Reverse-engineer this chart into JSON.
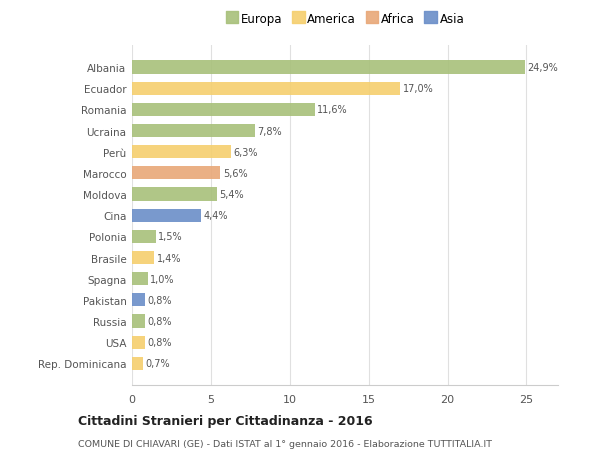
{
  "countries": [
    "Albania",
    "Ecuador",
    "Romania",
    "Ucraina",
    "Perù",
    "Marocco",
    "Moldova",
    "Cina",
    "Polonia",
    "Brasile",
    "Spagna",
    "Pakistan",
    "Russia",
    "USA",
    "Rep. Dominicana"
  ],
  "values": [
    24.9,
    17.0,
    11.6,
    7.8,
    6.3,
    5.6,
    5.4,
    4.4,
    1.5,
    1.4,
    1.0,
    0.8,
    0.8,
    0.8,
    0.7
  ],
  "labels": [
    "24,9%",
    "17,0%",
    "11,6%",
    "7,8%",
    "6,3%",
    "5,6%",
    "5,4%",
    "4,4%",
    "1,5%",
    "1,4%",
    "1,0%",
    "0,8%",
    "0,8%",
    "0,8%",
    "0,7%"
  ],
  "categories": [
    "Europa",
    "America",
    "Africa",
    "Asia"
  ],
  "bar_colors": [
    "#a8c07a",
    "#f5cf6e",
    "#a8c07a",
    "#a8c07a",
    "#f5cf6e",
    "#e8a878",
    "#a8c07a",
    "#6b8ec8",
    "#a8c07a",
    "#f5cf6e",
    "#a8c07a",
    "#6b8ec8",
    "#a8c07a",
    "#f5cf6e",
    "#f5cf6e"
  ],
  "legend_colors": [
    "#a8c07a",
    "#f5cf6e",
    "#e8a878",
    "#6b8ec8"
  ],
  "bg_color": "#ffffff",
  "grid_color": "#e0e0e0",
  "title": "Cittadini Stranieri per Cittadinanza - 2016",
  "subtitle": "COMUNE DI CHIAVARI (GE) - Dati ISTAT al 1° gennaio 2016 - Elaborazione TUTTITALIA.IT",
  "xlim": [
    0,
    27
  ],
  "xticks": [
    0,
    5,
    10,
    15,
    20,
    25
  ]
}
